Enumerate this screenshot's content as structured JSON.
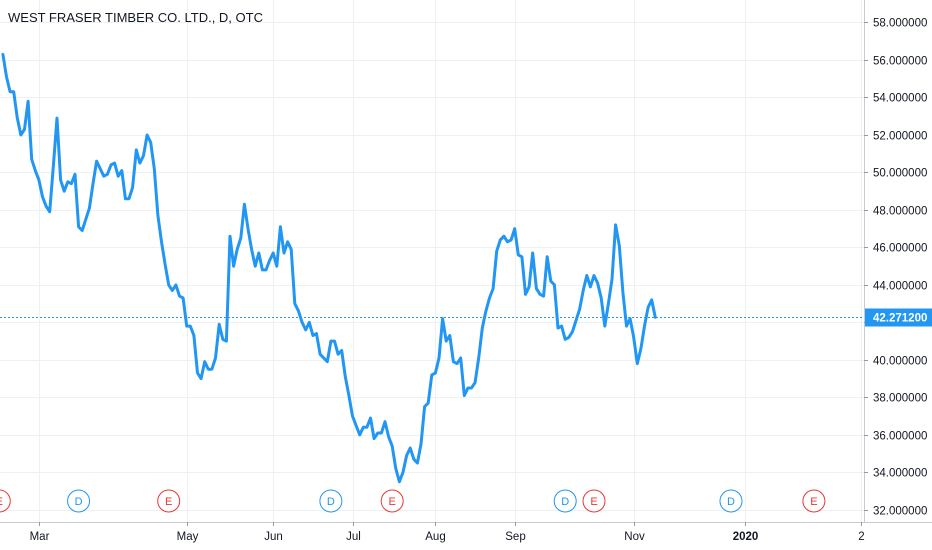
{
  "chart_data": {
    "type": "line",
    "title": "WEST FRASER TIMBER CO. LTD., D, OTC",
    "x_tick_labels": [
      "Mar",
      "May",
      "Jun",
      "Jul",
      "Aug",
      "Sep",
      "Nov",
      "2020",
      "2"
    ],
    "x_tick_index": [
      10,
      51,
      75,
      97,
      120,
      142,
      175,
      206,
      238
    ],
    "bold_tick_labels": [
      "2020"
    ],
    "y_tick_labels": [
      "32.000000",
      "34.000000",
      "36.000000",
      "38.000000",
      "40.000000",
      "42.000000",
      "44.000000",
      "46.000000",
      "48.000000",
      "50.000000",
      "52.000000",
      "54.000000",
      "56.000000",
      "58.000000"
    ],
    "ylim": [
      31.35,
      59.2
    ],
    "xlim": [
      -0.8,
      238.9
    ],
    "grid": true,
    "line_color": "#2196f3",
    "last_price": 42.2712,
    "last_price_label": "42.271200",
    "price_label_color": "#2196f3",
    "series": [
      {
        "values": [
          56.3,
          55.1,
          54.3,
          54.3,
          52.9,
          52.0,
          52.3,
          53.8,
          50.7,
          50.1,
          49.6,
          48.7,
          48.2,
          47.9,
          50.3,
          52.9,
          49.6,
          49.0,
          49.5,
          49.4,
          49.9,
          47.1,
          46.9,
          47.5,
          48.1,
          49.4,
          50.6,
          50.2,
          49.8,
          49.9,
          50.4,
          50.5,
          49.8,
          50.1,
          48.6,
          48.6,
          49.2,
          51.2,
          50.5,
          50.9,
          52.0,
          51.6,
          50.2,
          47.7,
          46.3,
          45.1,
          44.0,
          43.7,
          44.0,
          43.4,
          43.3,
          41.8,
          41.8,
          41.3,
          39.3,
          39.0,
          39.9,
          39.5,
          39.5,
          40.1,
          41.9,
          41.1,
          41.0,
          46.6,
          45.0,
          45.9,
          46.5,
          48.3,
          47.0,
          45.9,
          45.0,
          45.7,
          44.8,
          44.8,
          45.3,
          45.7,
          45.0,
          47.1,
          45.7,
          46.3,
          45.9,
          43.0,
          42.6,
          42.0,
          41.6,
          42.0,
          41.3,
          41.4,
          40.3,
          40.1,
          39.9,
          41.0,
          41.0,
          40.3,
          40.5,
          39.1,
          38.1,
          37.0,
          36.5,
          36.0,
          36.4,
          36.4,
          36.9,
          35.8,
          36.1,
          36.1,
          36.7,
          35.9,
          35.4,
          34.2,
          33.5,
          34.0,
          34.9,
          35.3,
          34.7,
          34.5,
          35.5,
          37.5,
          37.7,
          39.2,
          39.3,
          40.1,
          42.2,
          41.0,
          41.3,
          39.9,
          39.8,
          40.1,
          38.1,
          38.5,
          38.5,
          38.8,
          40.1,
          41.7,
          42.6,
          43.3,
          43.8,
          45.8,
          46.4,
          46.6,
          46.3,
          46.4,
          47.0,
          45.6,
          45.5,
          43.5,
          43.9,
          45.7,
          43.8,
          43.5,
          43.4,
          45.5,
          44.2,
          44.0,
          41.7,
          41.8,
          41.1,
          41.2,
          41.5,
          42.1,
          42.7,
          43.7,
          44.5,
          43.9,
          44.5,
          44.1,
          43.3,
          41.8,
          43.0,
          44.3,
          47.2,
          46.1,
          43.6,
          41.8,
          42.2,
          41.2,
          39.8,
          40.6,
          41.8,
          42.8,
          43.2,
          42.27
        ]
      }
    ],
    "events": [
      {
        "label": "E",
        "index": -1,
        "kind": "earnings"
      },
      {
        "label": "D",
        "index": 21,
        "kind": "dividend"
      },
      {
        "label": "E",
        "index": 46,
        "kind": "earnings"
      },
      {
        "label": "D",
        "index": 91,
        "kind": "dividend"
      },
      {
        "label": "E",
        "index": 108,
        "kind": "earnings"
      },
      {
        "label": "D",
        "index": 156,
        "kind": "dividend"
      },
      {
        "label": "E",
        "index": 164,
        "kind": "earnings"
      },
      {
        "label": "D",
        "index": 202,
        "kind": "dividend"
      },
      {
        "label": "E",
        "index": 225,
        "kind": "earnings"
      }
    ],
    "event_colors": {
      "earnings": "#e53935",
      "dividend": "#2196f3"
    }
  }
}
